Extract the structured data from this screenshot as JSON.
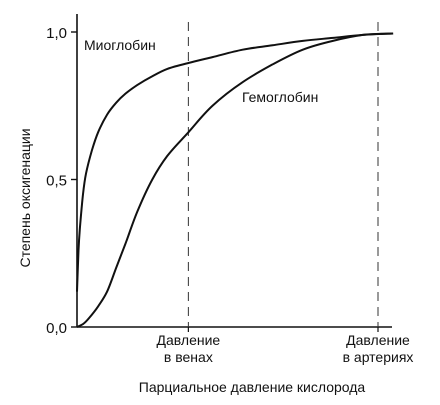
{
  "chart_data": {
    "type": "line",
    "title": "",
    "xlabel": "Парциальное давление кислорода",
    "ylabel": "Степень оксигенации",
    "x_unit": "relative partial pressure of O2 (0 = origin, 1 = arterial pressure line)",
    "xlim": [
      0,
      1.05
    ],
    "ylim": [
      0,
      1.0
    ],
    "yticks": [
      {
        "value": 0.0,
        "label": "0,0"
      },
      {
        "value": 0.5,
        "label": "0,5"
      },
      {
        "value": 1.0,
        "label": "1,0"
      }
    ],
    "reference_lines": [
      {
        "x": 0.37,
        "label_line1": "Давление",
        "label_line2": "в венах"
      },
      {
        "x": 1.0,
        "label_line1": "Давление",
        "label_line2": "в артериях"
      }
    ],
    "grid": false,
    "legend": "none (series labelled directly on curves)",
    "series": [
      {
        "name": "Миоглобин",
        "x": [
          0,
          0.005,
          0.01,
          0.02,
          0.03,
          0.05,
          0.07,
          0.1,
          0.13,
          0.16,
          0.2,
          0.25,
          0.3,
          0.37,
          0.45,
          0.55,
          0.65,
          0.75,
          0.85,
          0.95,
          1.05
        ],
        "y": [
          0.12,
          0.26,
          0.34,
          0.45,
          0.52,
          0.6,
          0.66,
          0.72,
          0.76,
          0.79,
          0.82,
          0.85,
          0.875,
          0.895,
          0.915,
          0.94,
          0.955,
          0.97,
          0.98,
          0.99,
          0.995
        ]
      },
      {
        "name": "Гемоглобин",
        "x": [
          0,
          0.02,
          0.04,
          0.07,
          0.1,
          0.13,
          0.16,
          0.2,
          0.25,
          0.3,
          0.37,
          0.45,
          0.55,
          0.65,
          0.75,
          0.85,
          0.95,
          1.05
        ],
        "y": [
          0.0,
          0.01,
          0.03,
          0.07,
          0.12,
          0.2,
          0.28,
          0.39,
          0.5,
          0.58,
          0.66,
          0.75,
          0.83,
          0.89,
          0.94,
          0.97,
          0.99,
          0.995
        ]
      }
    ]
  }
}
